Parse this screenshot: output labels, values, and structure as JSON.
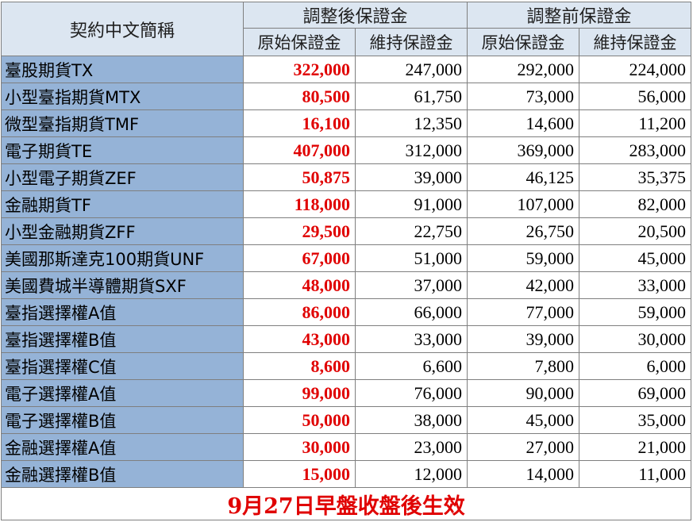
{
  "header": {
    "contract_col": "契約中文簡稱",
    "group_after": "調整後保證金",
    "group_before": "調整前保證金",
    "sub_initial": "原始保證金",
    "sub_maintenance": "維持保證金"
  },
  "rows": [
    {
      "name": "臺股期貨TX",
      "after_initial": "322,000",
      "after_maint": "247,000",
      "before_initial": "292,000",
      "before_maint": "224,000"
    },
    {
      "name": "小型臺指期貨MTX",
      "after_initial": "80,500",
      "after_maint": "61,750",
      "before_initial": "73,000",
      "before_maint": "56,000"
    },
    {
      "name": "微型臺指期貨TMF",
      "after_initial": "16,100",
      "after_maint": "12,350",
      "before_initial": "14,600",
      "before_maint": "11,200"
    },
    {
      "name": "電子期貨TE",
      "after_initial": "407,000",
      "after_maint": "312,000",
      "before_initial": "369,000",
      "before_maint": "283,000"
    },
    {
      "name": "小型電子期貨ZEF",
      "after_initial": "50,875",
      "after_maint": "39,000",
      "before_initial": "46,125",
      "before_maint": "35,375"
    },
    {
      "name": "金融期貨TF",
      "after_initial": "118,000",
      "after_maint": "91,000",
      "before_initial": "107,000",
      "before_maint": "82,000"
    },
    {
      "name": "小型金融期貨ZFF",
      "after_initial": "29,500",
      "after_maint": "22,750",
      "before_initial": "26,750",
      "before_maint": "20,500"
    },
    {
      "name": "美國那斯達克100期貨UNF",
      "after_initial": "67,000",
      "after_maint": "51,000",
      "before_initial": "59,000",
      "before_maint": "45,000"
    },
    {
      "name": "美國費城半導體期貨SXF",
      "after_initial": "48,000",
      "after_maint": "37,000",
      "before_initial": "42,000",
      "before_maint": "33,000"
    },
    {
      "name": "臺指選擇權A值",
      "after_initial": "86,000",
      "after_maint": "66,000",
      "before_initial": "77,000",
      "before_maint": "59,000"
    },
    {
      "name": "臺指選擇權B值",
      "after_initial": "43,000",
      "after_maint": "33,000",
      "before_initial": "39,000",
      "before_maint": "30,000"
    },
    {
      "name": "臺指選擇權C值",
      "after_initial": "8,600",
      "after_maint": "6,600",
      "before_initial": "7,800",
      "before_maint": "6,000"
    },
    {
      "name": "電子選擇權A值",
      "after_initial": "99,000",
      "after_maint": "76,000",
      "before_initial": "90,000",
      "before_maint": "69,000"
    },
    {
      "name": "電子選擇權B值",
      "after_initial": "50,000",
      "after_maint": "38,000",
      "before_initial": "45,000",
      "before_maint": "35,000"
    },
    {
      "name": "金融選擇權A值",
      "after_initial": "30,000",
      "after_maint": "23,000",
      "before_initial": "27,000",
      "before_maint": "21,000"
    },
    {
      "name": "金融選擇權B值",
      "after_initial": "15,000",
      "after_maint": "12,000",
      "before_initial": "14,000",
      "before_maint": "11,000"
    }
  ],
  "footer": {
    "note": "9月27日早盤收盤後生效"
  },
  "colors": {
    "header_bg": "#dce6f1",
    "name_bg": "#95b3d7",
    "highlight_text": "#e00000",
    "border": "#7f7f7f"
  }
}
